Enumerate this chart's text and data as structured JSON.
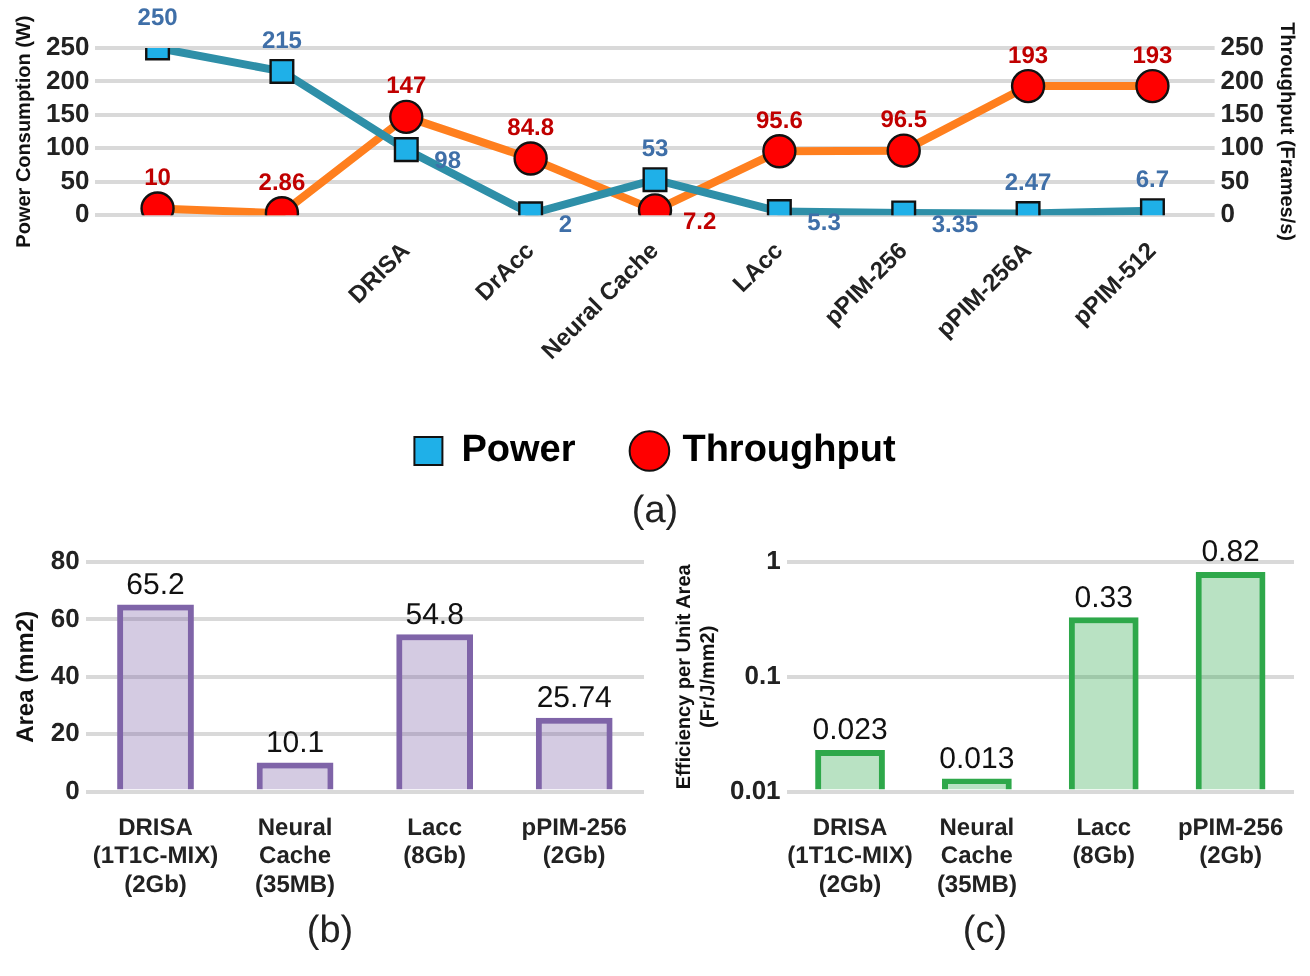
{
  "chart_data": [
    {
      "type": "line",
      "categories": [
        null,
        null,
        "DRISA",
        "DrAcc",
        "Neural Cache",
        "LAcc",
        "pPIM-256",
        "pPIM-256A",
        "pPIM-512"
      ],
      "ylabel": "Power Consumption (W)",
      "y2label": "Throughput (Frames/s)",
      "ylim": [
        0,
        250
      ],
      "yticks": [
        0,
        50,
        100,
        150,
        200,
        250
      ],
      "y2lim": [
        0,
        250
      ],
      "y2ticks": [
        0,
        50,
        100,
        150,
        200,
        250
      ],
      "grid": "y",
      "legend": "bottom",
      "data_labels": true,
      "annotations": [
        "(a)"
      ],
      "series": [
        {
          "name": "Power",
          "color": "#2e8fa8",
          "marker": "square",
          "values": [
            250,
            215,
            98,
            2,
            53,
            5.3,
            3.35,
            2.47,
            6.7
          ]
        },
        {
          "name": "Throughput",
          "color": "#ff7f1e",
          "marker": "circle",
          "axis": "y2",
          "values": [
            10,
            2.86,
            147,
            84.8,
            7.2,
            95.6,
            96.5,
            193,
            193
          ]
        }
      ]
    },
    {
      "type": "bar",
      "categories": [
        "DRISA\n(1T1C-MIX)\n(2Gb)",
        "Neural\nCache\n(35MB)",
        "Lacc\n(8Gb)",
        "pPIM-256\n(2Gb)"
      ],
      "values": [
        65.2,
        10.1,
        54.8,
        25.74
      ],
      "color": "#7f64a8",
      "ylabel": "Area (mm2)",
      "ylim": [
        0,
        80
      ],
      "yticks": [
        0,
        20,
        40,
        60,
        80
      ],
      "grid": "y",
      "data_labels": true,
      "annotations": [
        "(b)"
      ]
    },
    {
      "type": "bar",
      "categories": [
        "DRISA\n(1T1C-MIX)\n(2Gb)",
        "Neural\nCache\n(35MB)",
        "Lacc\n(8Gb)",
        "pPIM-256\n(2Gb)"
      ],
      "values": [
        0.023,
        0.013,
        0.33,
        0.82
      ],
      "color": "#2ea84a",
      "ylabel": "Efficiency per Unit Area\n(Fr/J/mm2)",
      "log": true,
      "ylim": [
        0.01,
        1
      ],
      "yticks": [
        0.01,
        0.1,
        1
      ],
      "grid": "y",
      "data_labels": true,
      "annotations": [
        "(c)"
      ]
    }
  ]
}
